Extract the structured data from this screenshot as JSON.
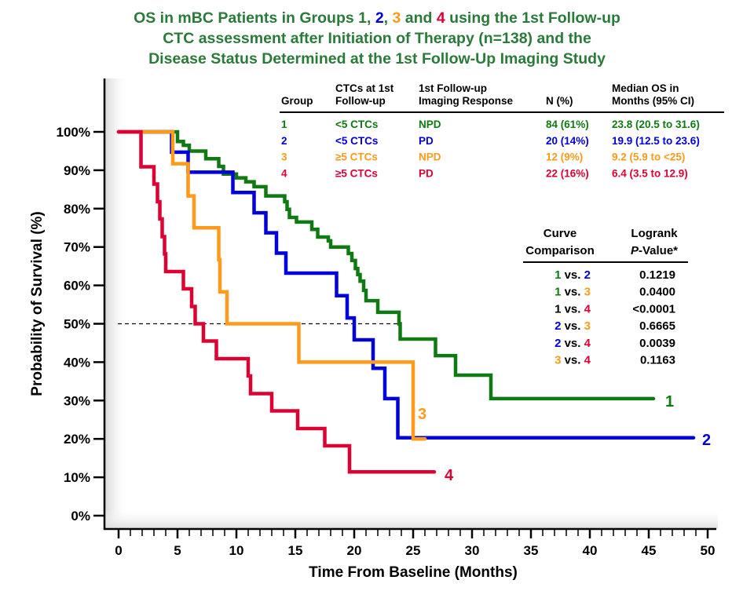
{
  "colors": {
    "g1": "#0f7a12",
    "g2": "#0000dd",
    "g3": "#ff9a1a",
    "g4": "#dd0033",
    "title": "#2a7a3a",
    "text": "#000000"
  },
  "chart_data": {
    "type": "line",
    "subtype": "kaplan-meier step",
    "title_lines": [
      [
        {
          "t": "OS in mBC Patients in Groups 1, ",
          "c": "title"
        },
        {
          "t": "2",
          "c": "g2"
        },
        {
          "t": ", ",
          "c": "title"
        },
        {
          "t": "3",
          "c": "g3"
        },
        {
          "t": " and ",
          "c": "title"
        },
        {
          "t": "4",
          "c": "g4"
        },
        {
          "t": " using the 1st Follow-up",
          "c": "title"
        }
      ],
      [
        {
          "t": "CTC assessment after Initiation of Therapy (n=138) and the",
          "c": "title"
        }
      ],
      [
        {
          "t": "Disease Status Determined at the 1st Follow-Up Imaging Study",
          "c": "title"
        }
      ]
    ],
    "xlabel": "Time From Baseline (Months)",
    "ylabel": "Probability of Survival (%)",
    "xlim": [
      0,
      50
    ],
    "ylim": [
      0,
      100
    ],
    "x_ticks": [
      "0",
      "5",
      "10",
      "15",
      "20",
      "25",
      "30",
      "35",
      "40",
      "45",
      "50"
    ],
    "y_ticks": [
      "0%",
      "10%",
      "20%",
      "30%",
      "40%",
      "50%",
      "60%",
      "70%",
      "80%",
      "90%",
      "100%"
    ],
    "reference_line": {
      "y": 50,
      "style": "dashed"
    },
    "grid": false,
    "series": [
      {
        "name": "1",
        "color": "g1",
        "end": 45.4,
        "points": [
          [
            0,
            100
          ],
          [
            5.0,
            97.5
          ],
          [
            5.5,
            96.5
          ],
          [
            6.0,
            95
          ],
          [
            7.4,
            93
          ],
          [
            8.5,
            91
          ],
          [
            8.9,
            89
          ],
          [
            10.0,
            88
          ],
          [
            10.8,
            87
          ],
          [
            11.5,
            85.7
          ],
          [
            12.5,
            83.3
          ],
          [
            14.1,
            81.8
          ],
          [
            14.3,
            79.8
          ],
          [
            14.5,
            77.7
          ],
          [
            15.1,
            76.5
          ],
          [
            16.4,
            74.6
          ],
          [
            16.9,
            72.6
          ],
          [
            17.8,
            71.6
          ],
          [
            18.0,
            70
          ],
          [
            19.5,
            68.3
          ],
          [
            19.8,
            66.5
          ],
          [
            20.1,
            64.4
          ],
          [
            20.3,
            62.8
          ],
          [
            20.5,
            61.1
          ],
          [
            20.8,
            58.7
          ],
          [
            21.0,
            56
          ],
          [
            22.0,
            53
          ],
          [
            23.8,
            50
          ],
          [
            23.9,
            46
          ],
          [
            26.9,
            41.7
          ],
          [
            28.6,
            36.6
          ],
          [
            31.6,
            30.5
          ]
        ]
      },
      {
        "name": "2",
        "color": "g2",
        "end": 48.8,
        "points": [
          [
            0,
            100
          ],
          [
            4.5,
            94.7
          ],
          [
            5.9,
            89.5
          ],
          [
            9.7,
            84.2
          ],
          [
            11.5,
            78.9
          ],
          [
            12.5,
            73.7
          ],
          [
            13.4,
            68.4
          ],
          [
            14.2,
            63.2
          ],
          [
            18.5,
            57.3
          ],
          [
            19.4,
            51.5
          ],
          [
            20.0,
            45.8
          ],
          [
            21.6,
            38.4
          ],
          [
            22.6,
            30.5
          ],
          [
            23.7,
            20.3
          ]
        ]
      },
      {
        "name": "3",
        "color": "g3",
        "end": 26.0,
        "points": [
          [
            0,
            100
          ],
          [
            4.6,
            91.7
          ],
          [
            5.9,
            83.3
          ],
          [
            6.4,
            75
          ],
          [
            8.5,
            66.7
          ],
          [
            8.6,
            58.3
          ],
          [
            9.2,
            50
          ],
          [
            15.3,
            40
          ],
          [
            25.0,
            20
          ]
        ]
      },
      {
        "name": "4",
        "color": "g4",
        "end": 26.8,
        "points": [
          [
            0,
            100
          ],
          [
            1.9,
            90.9
          ],
          [
            3.0,
            86.4
          ],
          [
            3.3,
            81.8
          ],
          [
            3.5,
            77.3
          ],
          [
            3.7,
            72.7
          ],
          [
            3.9,
            68.2
          ],
          [
            4.0,
            63.6
          ],
          [
            5.5,
            59.1
          ],
          [
            6.2,
            54.5
          ],
          [
            6.5,
            50
          ],
          [
            7.2,
            45.5
          ],
          [
            8.3,
            40.9
          ],
          [
            11.0,
            36.4
          ],
          [
            11.2,
            31.8
          ],
          [
            13.0,
            27.3
          ],
          [
            15.2,
            22.7
          ],
          [
            17.5,
            18.2
          ],
          [
            19.6,
            11.4
          ]
        ]
      }
    ],
    "group_table": {
      "headers": [
        [
          "",
          "Group"
        ],
        [
          "CTCs at 1st",
          "Follow-up"
        ],
        [
          "1st Follow-up",
          "Imaging Response"
        ],
        [
          "",
          "N (%)"
        ],
        [
          "Median OS in",
          "Months (95% CI)"
        ]
      ],
      "rows": [
        {
          "color": "g1",
          "cells": [
            "1",
            "<5 CTCs",
            "NPD",
            "84 (61%)",
            "23.8  (20.5 to 31.6)"
          ]
        },
        {
          "color": "g2",
          "cells": [
            "2",
            "<5 CTCs",
            "PD",
            "20 (14%)",
            "19.9  (12.5 to 23.6)"
          ]
        },
        {
          "color": "g3",
          "cells": [
            "3",
            "≥5 CTCs",
            "NPD",
            "12 (9%)",
            "9.2  (5.9 to <25)"
          ]
        },
        {
          "color": "g4",
          "cells": [
            "4",
            "≥5 CTCs",
            "PD",
            "22 (16%)",
            "6.4  (3.5 to 12.9)"
          ]
        }
      ]
    },
    "logrank_table": {
      "headers": [
        [
          "Curve",
          "Comparison"
        ],
        [
          "Logrank",
          "P-Value*"
        ]
      ],
      "rows": [
        {
          "a": "1",
          "ac": "g1",
          "b": "2",
          "bc": "g2",
          "vs": " vs. ",
          "p": "0.1219"
        },
        {
          "a": "1",
          "ac": "g1",
          "b": "3",
          "bc": "g3",
          "vs": " vs. ",
          "p": "0.0400"
        },
        {
          "a": "1",
          "ac": "text",
          "b": "4",
          "bc": "g4",
          "vs": " vs. ",
          "p": "<0.0001"
        },
        {
          "a": "2",
          "ac": "g2",
          "b": "3",
          "bc": "g3",
          "vs": " vs. ",
          "p": "0.6665"
        },
        {
          "a": "2",
          "ac": "g2",
          "b": "4",
          "bc": "g4",
          "vs": " vs. ",
          "p": "0.0039"
        },
        {
          "a": "3",
          "ac": "g3",
          "b": "4",
          "bc": "g4",
          "vs": " vs. ",
          "p": "0.1163"
        }
      ]
    }
  }
}
